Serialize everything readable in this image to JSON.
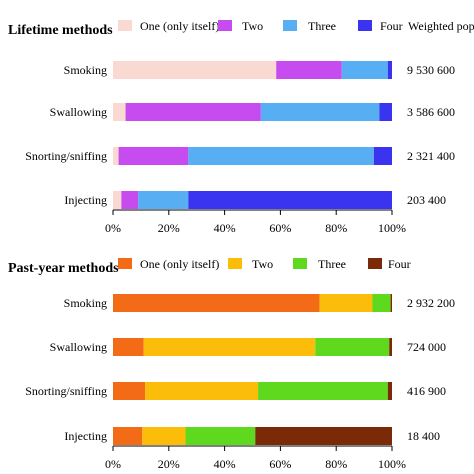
{
  "chart_data": [
    {
      "type": "bar",
      "orientation": "horizontal",
      "stacked": true,
      "title": "Lifetime methods",
      "categories": [
        "Smoking",
        "Swallowing",
        "Snorting/sniffing",
        "Injecting"
      ],
      "series": [
        {
          "name": "One (only itself)",
          "color": "#fbd9d3",
          "values": [
            58.5,
            4.5,
            2.0,
            3.0
          ]
        },
        {
          "name": "Two",
          "color": "#c74cf0",
          "values": [
            23.5,
            48.5,
            25.0,
            6.0
          ]
        },
        {
          "name": "Three",
          "color": "#57aef2",
          "values": [
            16.5,
            42.5,
            66.5,
            18.0
          ]
        },
        {
          "name": "Four",
          "color": "#3a33ef",
          "values": [
            1.5,
            4.5,
            6.5,
            73.0
          ]
        }
      ],
      "extra_column_header": "Weighted population",
      "weighted_population": [
        "9 530 600",
        "3 586 600",
        "2 321 400",
        "203 400"
      ],
      "xlim": [
        0,
        100
      ],
      "xticks": [
        "0%",
        "20%",
        "40%",
        "60%",
        "80%",
        "100%"
      ],
      "legend": "top"
    },
    {
      "type": "bar",
      "orientation": "horizontal",
      "stacked": true,
      "title": "Past-year methods",
      "categories": [
        "Smoking",
        "Swallowing",
        "Snorting/sniffing",
        "Injecting"
      ],
      "series": [
        {
          "name": "One (only itself)",
          "color": "#f36a17",
          "values": [
            74.0,
            11.0,
            11.5,
            10.5
          ]
        },
        {
          "name": "Two",
          "color": "#fbbc0a",
          "values": [
            19.0,
            61.5,
            40.5,
            15.5
          ]
        },
        {
          "name": "Three",
          "color": "#5fd91d",
          "values": [
            6.5,
            26.5,
            46.5,
            25.0
          ]
        },
        {
          "name": "Four",
          "color": "#7b2a07",
          "values": [
            0.5,
            1.0,
            1.5,
            49.0
          ]
        }
      ],
      "weighted_population": [
        "2 932 200",
        "724 000",
        "416 900",
        "18 400"
      ],
      "xlim": [
        0,
        100
      ],
      "xticks": [
        "0%",
        "20%",
        "40%",
        "60%",
        "80%",
        "100%"
      ],
      "legend": "top"
    }
  ]
}
